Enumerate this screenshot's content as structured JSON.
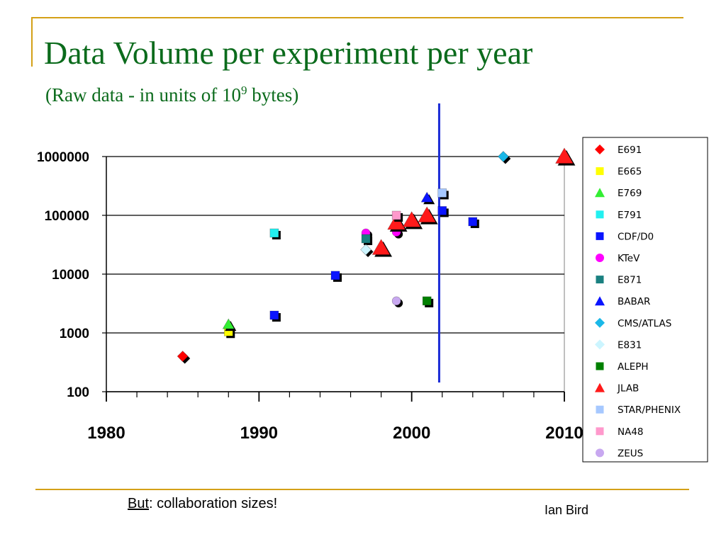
{
  "slide": {
    "title": "Data Volume per experiment per year",
    "subtitle_prefix": "(Raw data - in units of 10",
    "subtitle_exp": "9",
    "subtitle_suffix": " bytes)",
    "footer_note_underlined": "But",
    "footer_note_rest": ": collaboration sizes!",
    "author": "Ian Bird"
  },
  "colors": {
    "title": "#0b6b1c",
    "rule": "#d4a017",
    "divider_line": "#1a2bd6"
  },
  "chart_data": {
    "type": "scatter",
    "title": "",
    "xlabel": "",
    "ylabel": "",
    "xlim": [
      1980,
      2010
    ],
    "x_ticks": [
      "1980",
      "1990",
      "2000",
      "2010"
    ],
    "y_scale": "log",
    "ylim": [
      100,
      1000000
    ],
    "y_ticks": [
      "100",
      "1000",
      "10000",
      "100000",
      "1000000"
    ],
    "grid": "horizontal",
    "legend_position": "right",
    "vertical_marker_x": 2001.8,
    "series": [
      {
        "name": "E691",
        "marker": "diamond",
        "color": "#ff0000",
        "points": [
          [
            1985,
            400
          ]
        ]
      },
      {
        "name": "E665",
        "marker": "square",
        "color": "#ffff00",
        "points": [
          [
            1988,
            1050
          ]
        ]
      },
      {
        "name": "E769",
        "marker": "triangle",
        "color": "#33ee33",
        "points": [
          [
            1988,
            1400
          ]
        ]
      },
      {
        "name": "E791",
        "marker": "square",
        "color": "#22f0f0",
        "points": [
          [
            1991,
            50000
          ]
        ]
      },
      {
        "name": "CDF/D0",
        "marker": "square",
        "color": "#0a14ff",
        "points": [
          [
            1991,
            2000
          ],
          [
            1995,
            9500
          ],
          [
            2002,
            120000
          ],
          [
            2004,
            78000
          ]
        ]
      },
      {
        "name": "KTeV",
        "marker": "circle",
        "color": "#ff00ff",
        "points": [
          [
            1997,
            50000
          ],
          [
            1999,
            52000
          ]
        ]
      },
      {
        "name": "E871",
        "marker": "square",
        "color": "#1a8080",
        "points": [
          [
            1997,
            40000
          ]
        ]
      },
      {
        "name": "BABAR",
        "marker": "triangle",
        "color": "#0a14ff",
        "points": [
          [
            2001,
            200000
          ]
        ]
      },
      {
        "name": "CMS/ATLAS",
        "marker": "diamond",
        "color": "#1ab8e8",
        "points": [
          [
            2006,
            1000000
          ]
        ]
      },
      {
        "name": "E831",
        "marker": "diamond",
        "color": "#ccf5ff",
        "points": [
          [
            1997,
            26000
          ]
        ]
      },
      {
        "name": "ALEPH",
        "marker": "square",
        "color": "#008000",
        "points": [
          [
            2001,
            3500
          ]
        ]
      },
      {
        "name": "JLAB",
        "marker": "triangle",
        "color": "#ff1a1a",
        "points": [
          [
            1998,
            28000
          ],
          [
            1999,
            75000
          ],
          [
            2000,
            83000
          ],
          [
            2001,
            100000
          ],
          [
            2010,
            1000000
          ]
        ]
      },
      {
        "name": "STAR/PHENIX",
        "marker": "square",
        "color": "#a6c8ff",
        "points": [
          [
            2002,
            240000
          ]
        ]
      },
      {
        "name": "NA48",
        "marker": "square",
        "color": "#ff99cc",
        "points": [
          [
            1999,
            100000
          ]
        ]
      },
      {
        "name": "ZEUS",
        "marker": "circle",
        "color": "#c8a8f0",
        "points": [
          [
            1999,
            3500
          ]
        ]
      }
    ]
  }
}
